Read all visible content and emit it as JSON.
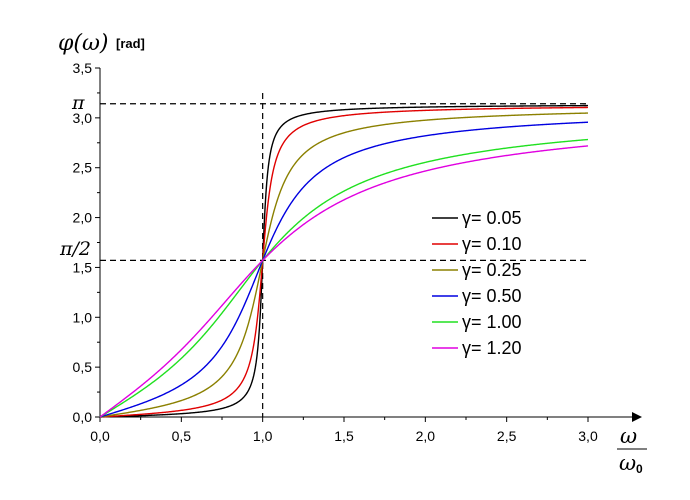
{
  "chart_data": {
    "type": "line",
    "ylabel": "φ(ω)",
    "yunit": "[rad]",
    "xlabel_num": "ω",
    "xlabel_den": "ω",
    "xlabel_den_sub": "0",
    "xlim": [
      0,
      3.0
    ],
    "ylim": [
      0,
      3.5
    ],
    "x_ticks": [
      "0,0",
      "0,5",
      "1,0",
      "1,5",
      "2,0",
      "2,5",
      "3,0"
    ],
    "x_tick_values": [
      0,
      0.5,
      1.0,
      1.5,
      2.0,
      2.5,
      3.0
    ],
    "y_ticks": [
      "0,0",
      "0,5",
      "1,0",
      "1,5",
      "2,0",
      "2,5",
      "3,0",
      "3,5"
    ],
    "y_tick_values": [
      0,
      0.5,
      1.0,
      1.5,
      2.0,
      2.5,
      3.0,
      3.5
    ],
    "grid": false,
    "legend_position": "right",
    "reference_lines": [
      {
        "orientation": "horizontal",
        "value": 3.14159,
        "label": "π"
      },
      {
        "orientation": "horizontal",
        "value": 1.5708,
        "label": "π/2"
      },
      {
        "orientation": "vertical",
        "value": 1.0,
        "label": ""
      }
    ],
    "series": [
      {
        "name": "γ= 0.05",
        "gamma": 0.05,
        "color": "#000000"
      },
      {
        "name": "γ= 0.10",
        "gamma": 0.1,
        "color": "#e00000"
      },
      {
        "name": "γ= 0.25",
        "gamma": 0.25,
        "color": "#8b8000"
      },
      {
        "name": "γ= 0.50",
        "gamma": 0.5,
        "color": "#0000e0"
      },
      {
        "name": "γ= 1.00",
        "gamma": 1.0,
        "color": "#20e020"
      },
      {
        "name": "γ= 1.20",
        "gamma": 1.2,
        "color": "#e000e0"
      }
    ]
  }
}
